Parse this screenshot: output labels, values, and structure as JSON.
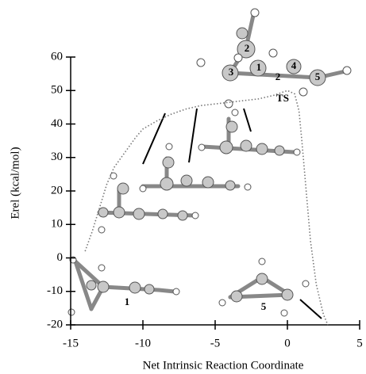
{
  "chart_data": {
    "type": "line",
    "xlabel": "Net Intrinsic Reaction Coordinate",
    "ylabel": "Erel (kcal/mol)",
    "xlim": [
      -15,
      5
    ],
    "ylim": [
      -20,
      60
    ],
    "xticks": [
      -15,
      -10,
      -5,
      0,
      5
    ],
    "yticks": [
      -20,
      -10,
      0,
      10,
      20,
      30,
      40,
      50,
      60
    ],
    "series": [
      {
        "name": null,
        "color": "#777777",
        "x": [
          -14,
          -13.5,
          -13,
          -12.5,
          -12,
          -11.5,
          -11,
          -10.5,
          -10,
          -9,
          -8,
          -7,
          -6,
          -5,
          -4,
          -3,
          -2,
          -1,
          0,
          0.5,
          0.8,
          1,
          1.3,
          1.6,
          2,
          2.5,
          2.8
        ],
        "values": [
          2,
          8,
          15,
          22,
          27,
          30,
          33,
          36,
          38.5,
          41,
          43,
          44.5,
          45.5,
          46,
          46.5,
          47,
          47.5,
          48.5,
          50,
          49,
          44,
          35,
          20,
          5,
          -8,
          -17,
          -20
        ]
      }
    ],
    "annotations": [
      "2",
      "TS",
      "1",
      "5",
      "1",
      "2",
      "3",
      "4",
      "5"
    ]
  }
}
